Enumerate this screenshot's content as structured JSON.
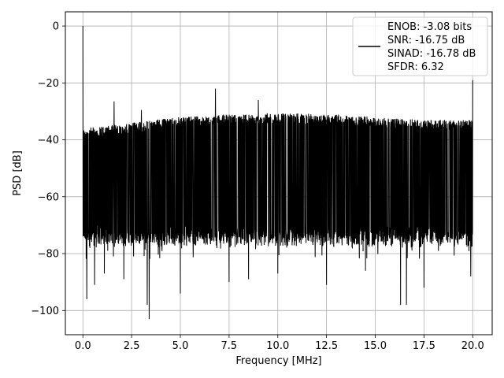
{
  "chart_data": {
    "type": "line",
    "xlabel": "Frequency [MHz]",
    "ylabel": "PSD [dB]",
    "xlim": [
      -0.9,
      21.0
    ],
    "ylim": [
      -108.5,
      5.0
    ],
    "x_ticks": [
      0.0,
      2.5,
      5.0,
      7.5,
      10.0,
      12.5,
      15.0,
      17.5,
      20.0
    ],
    "x_tick_labels": [
      "0.0",
      "2.5",
      "5.0",
      "7.5",
      "10.0",
      "12.5",
      "15.0",
      "17.5",
      "20.0"
    ],
    "y_ticks": [
      0,
      -20,
      -40,
      -60,
      -80,
      -100
    ],
    "y_tick_labels": [
      "0",
      "−20",
      "−40",
      "−60",
      "−80",
      "−100"
    ],
    "grid": true,
    "legend_position": "top-right",
    "series": [
      {
        "name": "ENOB: -3.08 bits\nSNR: -16.75 dB\nSINAD: -16.78 dB\nSFDR: 6.32",
        "color": "#000000",
        "frequency_range_mhz": [
          0.0,
          20.0
        ],
        "noise_floor_upper_db": {
          "x": [
            0.0,
            2.5,
            5.0,
            7.5,
            10.0,
            12.5,
            15.0,
            17.5,
            20.0
          ],
          "y": [
            -36,
            -34,
            -32,
            -31,
            -30.5,
            -31,
            -32,
            -33,
            -33
          ]
        },
        "noise_floor_lower_db": -72,
        "peaks": [
          {
            "x": 0.0,
            "y": 0
          },
          {
            "x": 1.6,
            "y": -26.5
          },
          {
            "x": 3.0,
            "y": -29.5
          },
          {
            "x": 6.8,
            "y": -22
          },
          {
            "x": 9.0,
            "y": -26
          },
          {
            "x": 20.0,
            "y": -19
          }
        ],
        "dips": [
          {
            "x": 0.2,
            "y": -96
          },
          {
            "x": 0.6,
            "y": -91
          },
          {
            "x": 1.1,
            "y": -87
          },
          {
            "x": 2.1,
            "y": -89
          },
          {
            "x": 3.4,
            "y": -103
          },
          {
            "x": 3.3,
            "y": -98
          },
          {
            "x": 5.0,
            "y": -94
          },
          {
            "x": 7.5,
            "y": -90
          },
          {
            "x": 8.5,
            "y": -89
          },
          {
            "x": 10.0,
            "y": -87
          },
          {
            "x": 12.5,
            "y": -91
          },
          {
            "x": 14.5,
            "y": -86
          },
          {
            "x": 16.3,
            "y": -98
          },
          {
            "x": 16.6,
            "y": -98
          },
          {
            "x": 17.5,
            "y": -92
          },
          {
            "x": 19.9,
            "y": -88
          }
        ]
      }
    ]
  }
}
